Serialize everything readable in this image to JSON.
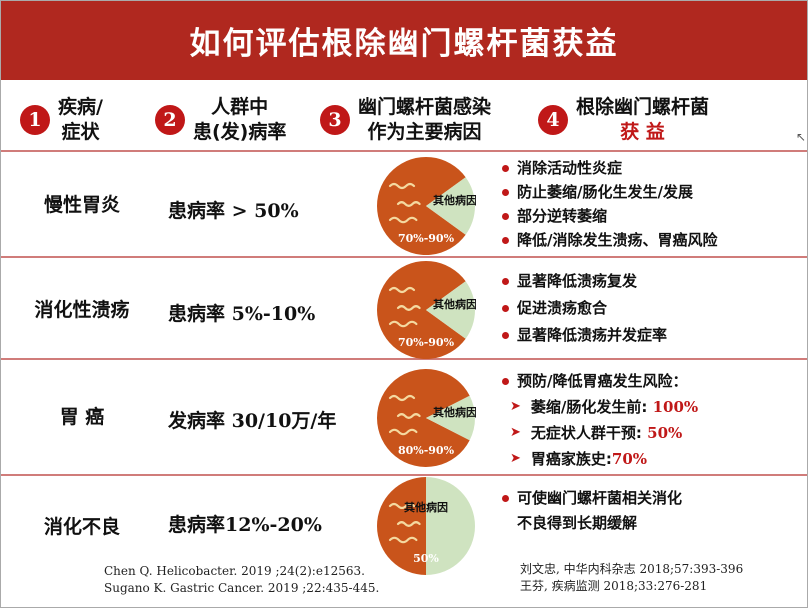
{
  "title": "如何评估根除幽门螺杆菌获益",
  "headers": {
    "h1": {
      "num": "1",
      "line1": "疾病/",
      "line2": "症状"
    },
    "h2": {
      "num": "2",
      "line1": "人群中",
      "line2": "患(发)病率"
    },
    "h3": {
      "num": "3",
      "line1": "幽门螺杆菌感染",
      "line2": "作为主要病因"
    },
    "h4": {
      "num": "4",
      "line1": "根除幽门螺杆菌",
      "line2": "获 益"
    }
  },
  "rows": [
    {
      "disease": "慢性胃炎",
      "rate": "患病率 > 50%",
      "benefits": [
        "消除活动性炎症",
        "防止萎缩/肠化生发生/发展",
        "部分逆转萎缩",
        "降低/消除发生溃疡、胃癌风险"
      ]
    },
    {
      "disease": "消化性溃疡",
      "rate": "患病率 5%-10%",
      "benefits": [
        "显著降低溃疡复发",
        "促进溃疡愈合",
        "显著降低溃疡并发症率"
      ]
    },
    {
      "disease": "胃 癌",
      "rate": "发病率 30/10万/年",
      "benefit_lead": "预防/降低胃癌发生风险：",
      "sub": [
        {
          "label": "萎缩/肠化发生前:",
          "value": "100%"
        },
        {
          "label": "无症状人群干预:",
          "value": "50%"
        },
        {
          "label": "胃癌家族史:",
          "value": "70%"
        }
      ]
    },
    {
      "disease": "消化不良",
      "rate": "患病率12%-20%",
      "benefit_lines": [
        "可使幽门螺杆菌相关消化",
        "不良得到长期缓解"
      ]
    }
  ],
  "chart_data": [
    {
      "type": "pie",
      "slices": [
        {
          "label": "70%-90%",
          "value": 80
        },
        {
          "label": "其他病因",
          "value": 20
        }
      ]
    },
    {
      "type": "pie",
      "slices": [
        {
          "label": "70%-90%",
          "value": 80
        },
        {
          "label": "其他病因",
          "value": 20
        }
      ]
    },
    {
      "type": "pie",
      "slices": [
        {
          "label": "80%-90%",
          "value": 85
        },
        {
          "label": "其他病因",
          "value": 15
        }
      ]
    },
    {
      "type": "pie",
      "slices": [
        {
          "label": "50%",
          "value": 50
        },
        {
          "label": "其他病因",
          "value": 50
        }
      ]
    }
  ],
  "colors": {
    "title_bg": "#b0281f",
    "accent_red": "#c01818",
    "pie_main": "#c9541b",
    "pie_other": "#cfe3c0"
  },
  "refs_left": [
    "Chen Q. Helicobacter. 2019 ;24(2):e12563.",
    "Sugano K. Gastric Cancer. 2019 ;22:435-445."
  ],
  "refs_right": [
    "刘文忠, 中华内科杂志 2018;57:393-396",
    "王芬, 疾病监测 2018;33:276-281"
  ]
}
